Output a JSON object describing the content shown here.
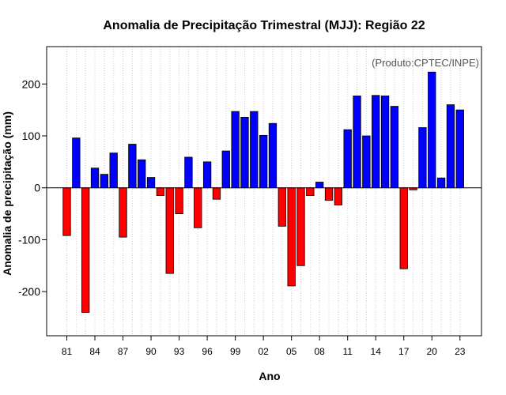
{
  "chart_data": {
    "type": "bar",
    "title": "Anomalia de Precipitação Trimestral (MJJ): Região 22",
    "xlabel": "Ano",
    "ylabel": "Anomalia de precipitação (mm)",
    "credit": "(Produto:CPTEC/INPE)",
    "ylim": [
      -285,
      272
    ],
    "yticks": [
      -200,
      -100,
      0,
      100,
      200
    ],
    "yticklabels": [
      "-200",
      "-100",
      "0",
      "100",
      "200"
    ],
    "grid": "vertical dotted",
    "colors": {
      "positive": "#0000ff",
      "negative": "#ff0000",
      "zero_line": "#000000"
    },
    "categories": [
      1981,
      1982,
      1983,
      1984,
      1985,
      1986,
      1987,
      1988,
      1989,
      1990,
      1991,
      1992,
      1993,
      1994,
      1995,
      1996,
      1997,
      1998,
      1999,
      2000,
      2001,
      2002,
      2003,
      2004,
      2005,
      2006,
      2007,
      2008,
      2009,
      2010,
      2011,
      2012,
      2013,
      2014,
      2015,
      2016,
      2017,
      2018,
      2019,
      2020,
      2021,
      2022,
      2023
    ],
    "xticks": [
      "81",
      "84",
      "87",
      "90",
      "93",
      "96",
      "99",
      "02",
      "05",
      "08",
      "11",
      "14",
      "17",
      "20",
      "23"
    ],
    "xtick_years": [
      1981,
      1984,
      1987,
      1990,
      1993,
      1996,
      1999,
      2002,
      2005,
      2008,
      2011,
      2014,
      2017,
      2020,
      2023
    ],
    "values": [
      -92,
      96,
      -240,
      38,
      26,
      67,
      -95,
      84,
      54,
      20,
      -15,
      -165,
      -50,
      59,
      -77,
      50,
      -22,
      71,
      147,
      136,
      147,
      101,
      124,
      -74,
      -189,
      -150,
      -15,
      11,
      -24,
      -33,
      112,
      177,
      100,
      178,
      177,
      157,
      -156,
      -4,
      116,
      223,
      19,
      160,
      150
    ]
  }
}
